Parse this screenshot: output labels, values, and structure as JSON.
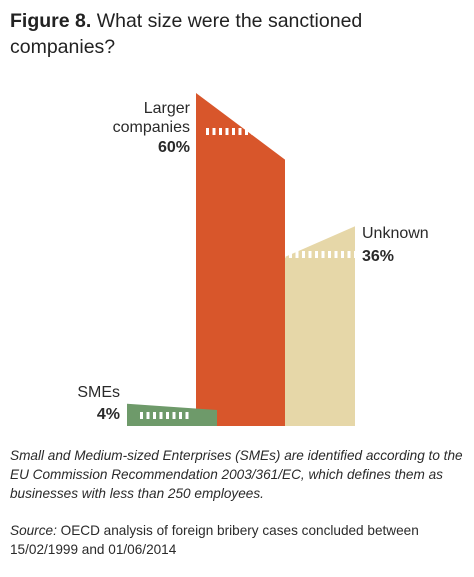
{
  "header": {
    "figure_label": "Figure 8.",
    "title_line1": "What size were the sanctioned",
    "title_line2": "companies?"
  },
  "chart_data": {
    "type": "bar",
    "title": "What size were the sanctioned companies?",
    "categories": [
      "SMEs",
      "Larger companies",
      "Unknown"
    ],
    "values": [
      4,
      60,
      36
    ],
    "unit": "%",
    "labels": [
      {
        "name_lines": [
          "SMEs"
        ],
        "value_text": "4%"
      },
      {
        "name_lines": [
          "Larger",
          "companies"
        ],
        "value_text": "60%"
      },
      {
        "name_lines": [
          "Unknown"
        ],
        "value_text": "36%"
      }
    ],
    "colors": [
      "#6e9a6a",
      "#d8562b",
      "#e6d7a8"
    ],
    "style": "3D-like building bars with dotted window strips",
    "grid": false
  },
  "footnote": {
    "text": "Small and Medium-sized Enterprises (SMEs) are identified according to the EU Commission Recommendation 2003/361/EC, which defines them as businesses with less than 250 employees."
  },
  "source": {
    "label": "Source:",
    "text": " OECD analysis of foreign bribery cases concluded between 15/02/1999 and 01/06/2014"
  }
}
